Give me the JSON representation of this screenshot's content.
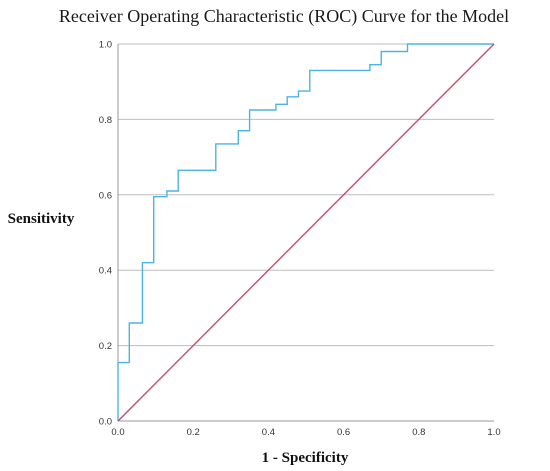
{
  "chart_data": {
    "type": "line",
    "title": "Receiver Operating Characteristic (ROC) Curve for the Model",
    "xlabel": "1 - Specificity",
    "ylabel": "Sensitivity",
    "xlim": [
      0,
      1
    ],
    "ylim": [
      0,
      1
    ],
    "x_ticks": [
      "0.0",
      "0.2",
      "0.4",
      "0.6",
      "0.8",
      "1.0"
    ],
    "y_ticks": [
      "0.0",
      "0.2",
      "0.4",
      "0.6",
      "0.8",
      "1.0"
    ],
    "grid": "horizontal",
    "series": [
      {
        "style": "step",
        "color": "#4db3e6",
        "x": [
          0.0,
          0.0,
          0.03,
          0.03,
          0.065,
          0.065,
          0.095,
          0.095,
          0.13,
          0.13,
          0.16,
          0.16,
          0.26,
          0.26,
          0.32,
          0.32,
          0.35,
          0.35,
          0.42,
          0.42,
          0.45,
          0.45,
          0.48,
          0.48,
          0.51,
          0.51,
          0.67,
          0.67,
          0.7,
          0.7,
          0.77,
          0.77,
          1.0
        ],
        "y": [
          0.0,
          0.155,
          0.155,
          0.26,
          0.26,
          0.42,
          0.42,
          0.595,
          0.595,
          0.61,
          0.61,
          0.665,
          0.665,
          0.735,
          0.735,
          0.77,
          0.77,
          0.825,
          0.825,
          0.84,
          0.84,
          0.86,
          0.86,
          0.875,
          0.875,
          0.93,
          0.93,
          0.945,
          0.945,
          0.98,
          0.98,
          1.0,
          1.0
        ]
      },
      {
        "style": "line",
        "color": "#c0506e",
        "x": [
          0,
          1
        ],
        "y": [
          0,
          1
        ]
      }
    ]
  }
}
